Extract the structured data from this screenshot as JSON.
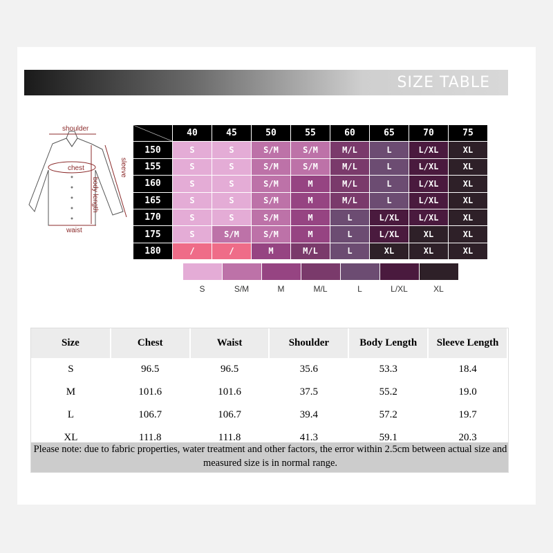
{
  "banner": {
    "title": "SIZE TABLE"
  },
  "diagram": {
    "shoulder": "shoulder",
    "chest": "chest",
    "sleeve": "sleeve",
    "body_length": "body length",
    "waist": "waist"
  },
  "size_grid": {
    "columns": [
      "40",
      "45",
      "50",
      "55",
      "60",
      "65",
      "70",
      "75"
    ],
    "rows": [
      {
        "label": "150",
        "cells": [
          "S",
          "S",
          "S/M",
          "S/M",
          "M/L",
          "L",
          "L/XL",
          "XL"
        ]
      },
      {
        "label": "155",
        "cells": [
          "S",
          "S",
          "S/M",
          "S/M",
          "M/L",
          "L",
          "L/XL",
          "XL"
        ]
      },
      {
        "label": "160",
        "cells": [
          "S",
          "S",
          "S/M",
          "M",
          "M/L",
          "L",
          "L/XL",
          "XL"
        ]
      },
      {
        "label": "165",
        "cells": [
          "S",
          "S",
          "S/M",
          "M",
          "M/L",
          "L",
          "L/XL",
          "XL"
        ]
      },
      {
        "label": "170",
        "cells": [
          "S",
          "S",
          "S/M",
          "M",
          "L",
          "L/XL",
          "L/XL",
          "XL"
        ]
      },
      {
        "label": "175",
        "cells": [
          "S",
          "S/M",
          "S/M",
          "M",
          "L",
          "L/XL",
          "XL",
          "XL"
        ]
      },
      {
        "label": "180",
        "cells": [
          "/",
          "/",
          "M",
          "M/L",
          "L",
          "XL",
          "XL",
          "XL"
        ]
      }
    ],
    "colors": {
      "S": "#e4acd6",
      "S/M": "#bd72a8",
      "M": "#964482",
      "M/L": "#7a3a6b",
      "L": "#6c4c72",
      "L/XL": "#4a1a3e",
      "XL": "#2e2028",
      "/": "#ef6c88"
    }
  },
  "legend": [
    "S",
    "S/M",
    "M",
    "M/L",
    "L",
    "L/XL",
    "XL"
  ],
  "measurements": {
    "headers": [
      "Size",
      "Chest",
      "Waist",
      "Shoulder",
      "Body Length",
      "Sleeve Length"
    ],
    "rows": [
      [
        "S",
        "96.5",
        "96.5",
        "35.6",
        "53.3",
        "18.4"
      ],
      [
        "M",
        "101.6",
        "101.6",
        "37.5",
        "55.2",
        "19.0"
      ],
      [
        "L",
        "106.7",
        "106.7",
        "39.4",
        "57.2",
        "19.7"
      ],
      [
        "XL",
        "111.8",
        "111.8",
        "41.3",
        "59.1",
        "20.3"
      ]
    ],
    "note": "Please note: due to fabric properties, water treatment and other factors, the error within 2.5cm between actual size and measured size is in normal range."
  }
}
